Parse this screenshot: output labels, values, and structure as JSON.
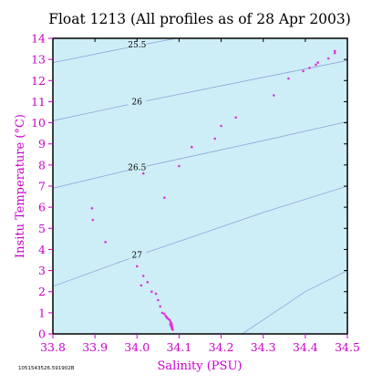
{
  "chart_data": {
    "type": "scatter",
    "title": "Float 1213  (All profiles as of 28 Apr 2003)",
    "xlabel": "Salinity (PSU)",
    "ylabel": "Insitu Temperature (°C)",
    "xlim": [
      33.8,
      34.5
    ],
    "ylim": [
      0,
      14
    ],
    "x_ticks": [
      "33.8",
      "33.9",
      "34.0",
      "34.1",
      "34.2",
      "34.3",
      "34.4",
      "34.5"
    ],
    "y_ticks": [
      "0",
      "1",
      "2",
      "3",
      "4",
      "5",
      "6",
      "7",
      "8",
      "9",
      "10",
      "11",
      "12",
      "13",
      "14"
    ],
    "grid": false,
    "background_color": "#cdeef7",
    "point_color": "#dd33dd",
    "text_color": "#cc00cc",
    "contour_color": "#8fa4d8",
    "contours": [
      {
        "label": "25.5",
        "points": [
          [
            33.8,
            12.85
          ],
          [
            33.975,
            13.55
          ],
          [
            34.2,
            14.4
          ]
        ]
      },
      {
        "label": "26",
        "points": [
          [
            33.8,
            10.1
          ],
          [
            34.0,
            10.95
          ],
          [
            34.3,
            12.15
          ],
          [
            34.5,
            12.95
          ]
        ]
      },
      {
        "label": "26.5",
        "points": [
          [
            33.8,
            6.9
          ],
          [
            34.0,
            7.85
          ],
          [
            34.3,
            9.15
          ],
          [
            34.5,
            10.05
          ]
        ]
      },
      {
        "label": "27",
        "points": [
          [
            33.8,
            2.25
          ],
          [
            34.0,
            3.7
          ],
          [
            34.3,
            5.75
          ],
          [
            34.5,
            7.0
          ]
        ]
      },
      {
        "label": "",
        "points": [
          [
            34.25,
            0.0
          ],
          [
            34.4,
            2.0
          ],
          [
            34.5,
            3.0
          ]
        ]
      }
    ],
    "series": [
      {
        "points": [
          [
            34.47,
            13.4
          ],
          [
            34.47,
            13.3
          ],
          [
            34.455,
            13.05
          ],
          [
            34.43,
            12.85
          ],
          [
            34.425,
            12.75
          ],
          [
            34.41,
            12.6
          ],
          [
            34.395,
            12.45
          ],
          [
            34.36,
            12.1
          ],
          [
            34.325,
            11.3
          ],
          [
            34.235,
            10.25
          ],
          [
            34.2,
            9.85
          ],
          [
            34.185,
            9.25
          ],
          [
            34.13,
            8.85
          ],
          [
            34.1,
            7.95
          ],
          [
            34.015,
            7.6
          ],
          [
            34.065,
            6.45
          ],
          [
            33.893,
            5.95
          ],
          [
            33.895,
            5.4
          ],
          [
            33.925,
            4.35
          ],
          [
            34.0,
            3.2
          ],
          [
            34.015,
            2.75
          ],
          [
            34.01,
            2.3
          ],
          [
            34.025,
            2.45
          ],
          [
            34.035,
            2.0
          ],
          [
            34.045,
            1.9
          ],
          [
            34.05,
            1.6
          ],
          [
            34.055,
            1.3
          ],
          [
            34.06,
            1.0
          ],
          [
            34.065,
            0.95
          ],
          [
            34.068,
            0.85
          ],
          [
            34.072,
            0.75
          ],
          [
            34.075,
            0.7
          ],
          [
            34.078,
            0.65
          ],
          [
            34.08,
            0.55
          ],
          [
            34.082,
            0.5
          ],
          [
            34.083,
            0.4
          ],
          [
            34.084,
            0.3
          ],
          [
            34.085,
            0.2
          ],
          [
            34.083,
            0.25
          ],
          [
            34.081,
            0.35
          ],
          [
            34.079,
            0.45
          ],
          [
            34.07,
            0.8
          ]
        ]
      }
    ]
  },
  "footnote": "1051543526.591902B"
}
